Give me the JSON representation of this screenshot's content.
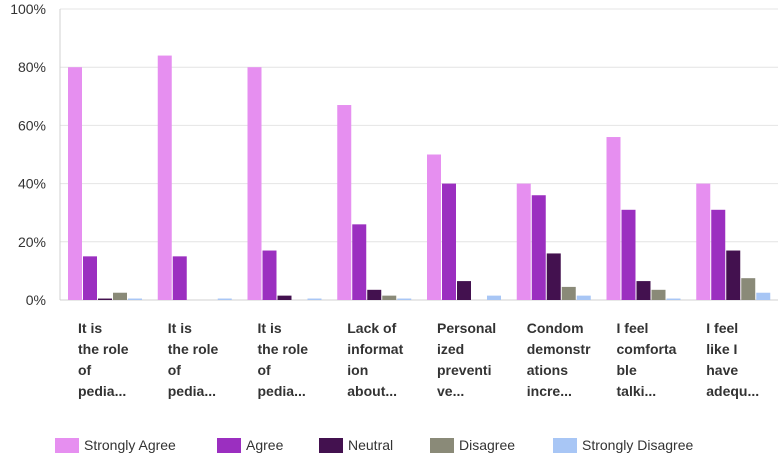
{
  "chart_data": {
    "type": "bar",
    "title": "",
    "xlabel": "",
    "ylabel": "",
    "ylim": [
      0,
      100
    ],
    "grid": true,
    "legend_position": "bottom",
    "y_ticks": [
      "0%",
      "20%",
      "40%",
      "60%",
      "80%",
      "100%"
    ],
    "category_label_lines": [
      [
        "It is",
        "the role",
        "of",
        "pedia..."
      ],
      [
        "It is",
        "the role",
        "of",
        "pedia..."
      ],
      [
        "It is",
        "the role",
        "of",
        "pedia..."
      ],
      [
        "Lack of",
        "informat",
        "ion",
        "about..."
      ],
      [
        "Personal",
        "ized",
        "preventi",
        "ve..."
      ],
      [
        "Condom",
        "demonstr",
        "ations",
        "incre..."
      ],
      [
        "I feel",
        "comforta",
        "ble",
        "talki..."
      ],
      [
        "I feel",
        "like I",
        "have",
        "adequ..."
      ]
    ],
    "series": [
      {
        "name": "Strongly Agree",
        "color": "#e68ff0",
        "values": [
          80,
          84,
          80,
          67,
          50,
          40,
          56,
          40
        ]
      },
      {
        "name": "Agree",
        "color": "#9b2fc0",
        "values": [
          15,
          15,
          17,
          26,
          40,
          36,
          31,
          31
        ]
      },
      {
        "name": "Neutral",
        "color": "#43114f",
        "values": [
          0.5,
          0,
          1.5,
          3.5,
          6.5,
          16,
          6.5,
          17
        ]
      },
      {
        "name": "Disagree",
        "color": "#8a8a78",
        "values": [
          2.5,
          0,
          0,
          1.5,
          0,
          4.5,
          3.5,
          7.5
        ]
      },
      {
        "name": "Strongly Disagree",
        "color": "#a8c6f5",
        "values": [
          0.5,
          0.5,
          0.5,
          0.5,
          1.5,
          1.5,
          0.5,
          2.5
        ]
      }
    ]
  }
}
